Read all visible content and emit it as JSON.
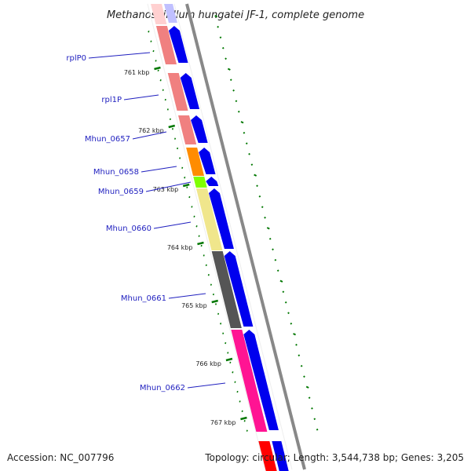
{
  "title": "Methanospirillum hungatei JF-1, complete genome",
  "genes": [
    {
      "name": "rplP0",
      "color": "#f08080",
      "strand": "+"
    },
    {
      "name": "rpl1P",
      "color": "#f08080",
      "strand": "+"
    },
    {
      "name": "Mhun_0657",
      "color": "#f08080",
      "strand": "+"
    },
    {
      "name": "Mhun_0658",
      "color": "#ff8c00",
      "strand": "+"
    },
    {
      "name": "Mhun_0659",
      "color": "#7fff00",
      "strand": "+"
    },
    {
      "name": "Mhun_0660",
      "color": "#f0e68c",
      "strand": "+"
    },
    {
      "name": "Mhun_0661",
      "color": "#555555",
      "strand": "+"
    },
    {
      "name": "Mhun_0662",
      "color": "#ff1493",
      "strand": "+"
    }
  ],
  "kbp_ticks": [
    "761 kbp",
    "762 kbp",
    "763 kbp",
    "764 kbp",
    "765 kbp",
    "766 kbp",
    "767 kbp"
  ],
  "footer": {
    "accession": "Accession: NC_007796",
    "summary": "Topology: circular; Length: 3,544,738 bp; Genes: 3,205"
  },
  "colors": {
    "forward_strand": "#0000ee",
    "backbone": "#888888",
    "tick": "#007700",
    "label_line": "#1f1fbf",
    "faded_gene": "#ffd0d0",
    "next_gene": "#ff0000"
  }
}
